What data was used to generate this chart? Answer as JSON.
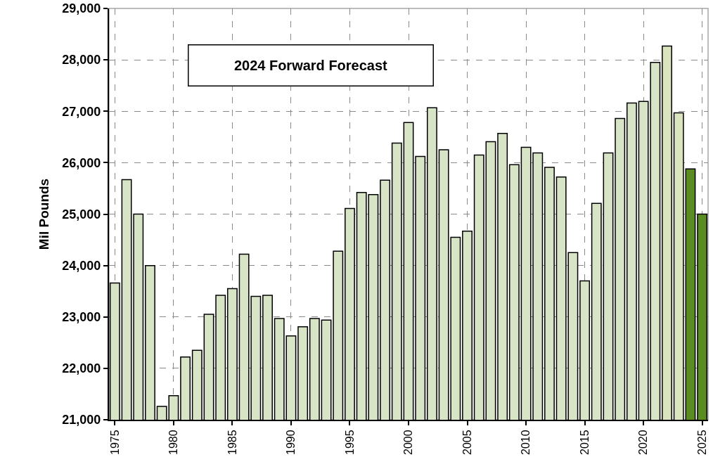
{
  "chart_data": {
    "type": "bar",
    "ylabel": "Mil Pounds",
    "annotations": [
      "2024 Forward Forecast"
    ],
    "x": [
      1975,
      1976,
      1977,
      1978,
      1979,
      1980,
      1981,
      1982,
      1983,
      1984,
      1985,
      1986,
      1987,
      1988,
      1989,
      1990,
      1991,
      1992,
      1993,
      1994,
      1995,
      1996,
      1997,
      1998,
      1999,
      2000,
      2001,
      2002,
      2003,
      2004,
      2005,
      2006,
      2007,
      2008,
      2009,
      2010,
      2011,
      2012,
      2013,
      2014,
      2015,
      2016,
      2017,
      2018,
      2019,
      2020,
      2021,
      2022,
      2023,
      2024,
      2025
    ],
    "values": [
      23660,
      25670,
      25000,
      24000,
      21260,
      21470,
      22220,
      22350,
      23050,
      23420,
      23550,
      24220,
      23400,
      23420,
      22970,
      22630,
      22810,
      22970,
      22940,
      24280,
      25110,
      25420,
      25380,
      25660,
      26380,
      26780,
      26120,
      27070,
      26250,
      24550,
      24670,
      26150,
      26410,
      26570,
      25960,
      26300,
      26190,
      25910,
      25720,
      24250,
      23700,
      25210,
      26190,
      26860,
      27160,
      27190,
      27950,
      28270,
      26970,
      25880,
      25000
    ],
    "colors": [
      "#d7e4c6",
      "#d7e4c6",
      "#d7e4c6",
      "#d7e4c6",
      "#d7e4c6",
      "#d7e4c6",
      "#d7e4c6",
      "#d7e4c6",
      "#d7e4c6",
      "#d7e4c6",
      "#d7e4c6",
      "#d7e4c6",
      "#d7e4c6",
      "#d7e4c6",
      "#d7e4c6",
      "#d7e4c6",
      "#d7e4c6",
      "#d7e4c6",
      "#d7e4c6",
      "#d7e4c6",
      "#d7e4c6",
      "#d7e4c6",
      "#d7e4c6",
      "#d7e4c6",
      "#d7e4c6",
      "#d7e4c6",
      "#d7e4c6",
      "#d7e4c6",
      "#d7e4c6",
      "#d7e4c6",
      "#d7e4c6",
      "#d7e4c6",
      "#d7e4c6",
      "#d7e4c6",
      "#d7e4c6",
      "#d7e4c6",
      "#d7e4c6",
      "#d7e4c6",
      "#d7e4c6",
      "#d7e4c6",
      "#d7e4c6",
      "#d7e4c6",
      "#d7e4c6",
      "#d7e4c6",
      "#d7e4c6",
      "#d7e4c6",
      "#d7e4c6",
      "#dae5bf",
      "#dae5bf",
      "#5b8c22",
      "#5b8c22"
    ],
    "xlim": [
      1974.5,
      2025.5
    ],
    "xticks": [
      1975,
      1980,
      1985,
      1990,
      1995,
      2000,
      2005,
      2010,
      2015,
      2020,
      2025
    ],
    "ylim": [
      21000,
      29000
    ],
    "yticks": [
      {
        "value": 21000,
        "label": "21,000"
      },
      {
        "value": 22000,
        "label": "22,000"
      },
      {
        "value": 23000,
        "label": "23,000"
      },
      {
        "value": 24000,
        "label": "24,000"
      },
      {
        "value": 25000,
        "label": "25,000"
      },
      {
        "value": 26000,
        "label": "26,000"
      },
      {
        "value": 27000,
        "label": "27,000"
      },
      {
        "value": 28000,
        "label": "28,000"
      },
      {
        "value": 29000,
        "label": "29,000"
      }
    ],
    "grid": true
  }
}
